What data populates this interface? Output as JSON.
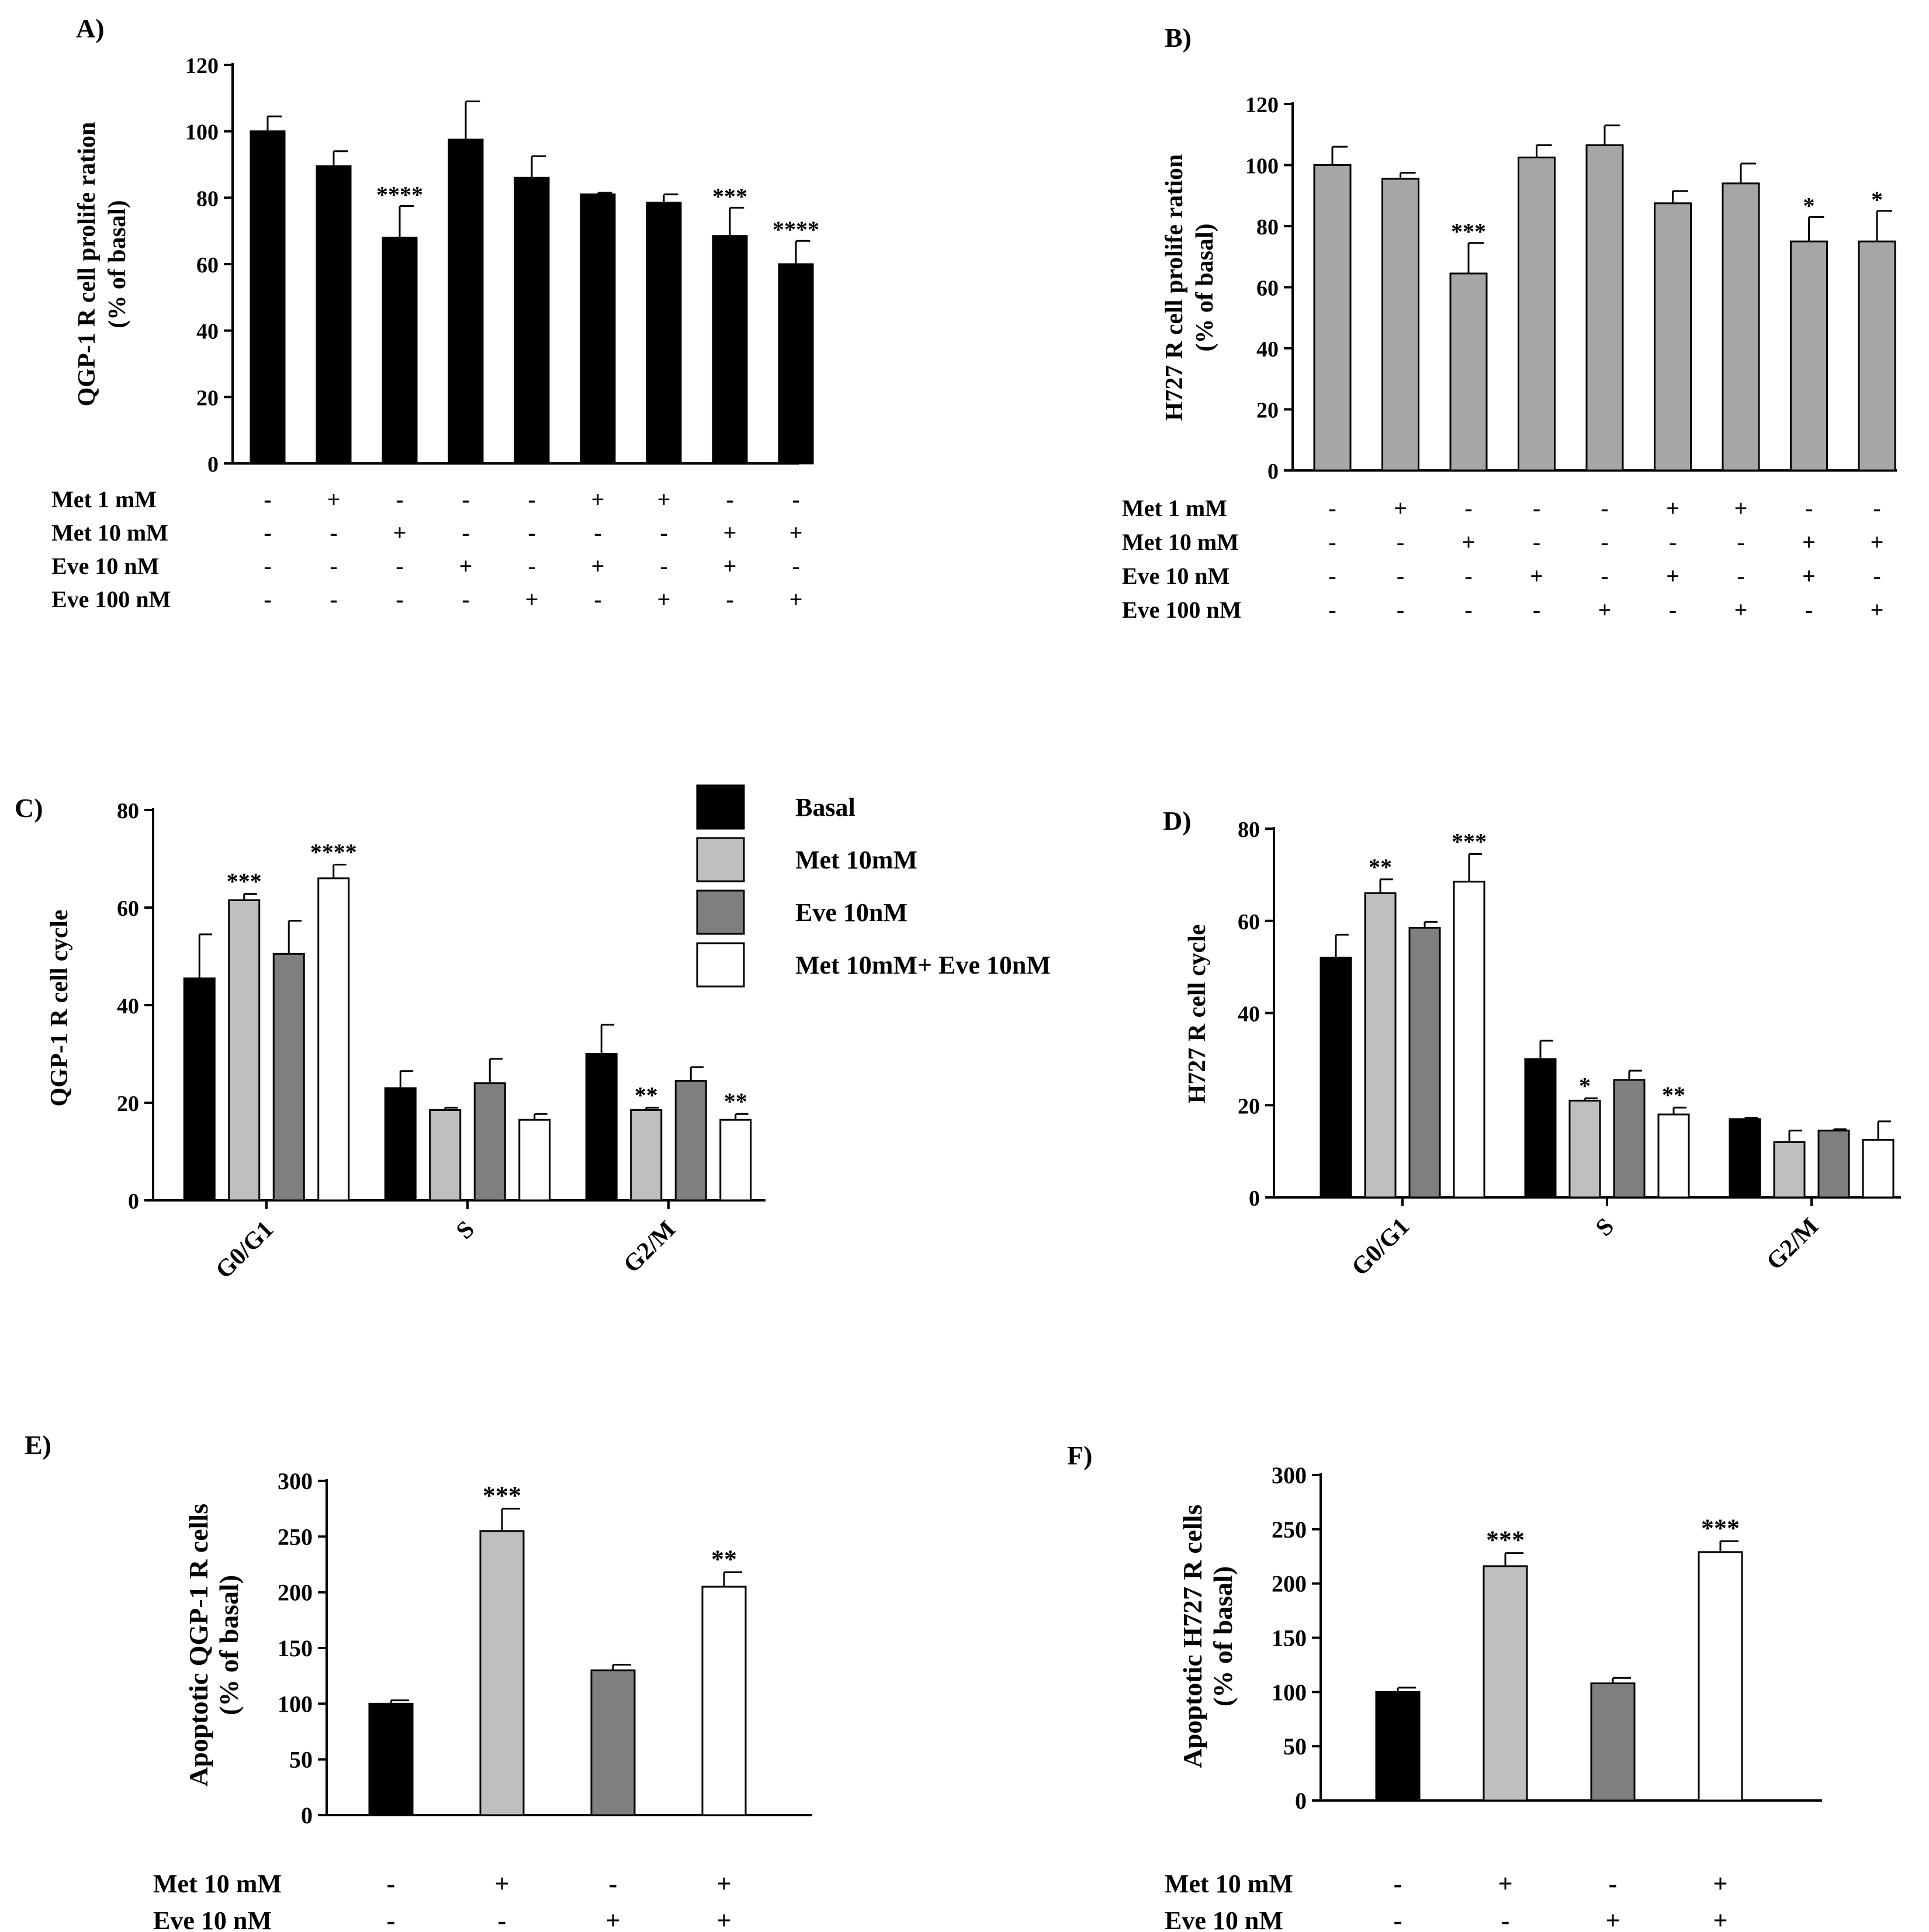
{
  "chart_data": [
    {
      "panel": "A)",
      "type": "bar",
      "ylabel": [
        "QGP-1 R cell prolife ration",
        "(% of basal)"
      ],
      "ylim": [
        0,
        120
      ],
      "yticks": [
        0,
        20,
        40,
        60,
        80,
        100,
        120
      ],
      "bar_color": "#000000",
      "values": [
        100,
        89.5,
        68,
        97.5,
        86,
        81,
        78.5,
        68.5,
        60
      ],
      "errors": [
        4.5,
        4.5,
        9.5,
        11.5,
        6.5,
        0.5,
        2.5,
        8.5,
        7
      ],
      "sig": [
        "",
        "",
        "****",
        "",
        "",
        "",
        "",
        "***",
        "****"
      ],
      "treatment_rows": [
        {
          "label": "Met 1 mM",
          "marks": [
            "-",
            "+",
            "-",
            "-",
            "-",
            "+",
            "+",
            "-",
            "-"
          ]
        },
        {
          "label": "Met 10 mM",
          "marks": [
            "-",
            "-",
            "+",
            "-",
            "-",
            "-",
            "-",
            "+",
            "+"
          ]
        },
        {
          "label": "Eve 10 nM",
          "marks": [
            "-",
            "-",
            "-",
            "+",
            "-",
            "+",
            "-",
            "+",
            "-"
          ]
        },
        {
          "label": "Eve 100 nM",
          "marks": [
            "-",
            "-",
            "-",
            "-",
            "+",
            "-",
            "+",
            "-",
            "+"
          ]
        }
      ]
    },
    {
      "panel": "B)",
      "type": "bar",
      "ylabel": [
        "H727  R cell prolife ration",
        "(% of basal)"
      ],
      "ylim": [
        0,
        120
      ],
      "yticks": [
        0,
        20,
        40,
        60,
        80,
        100,
        120
      ],
      "bar_color": "#a6a6a6",
      "values": [
        100,
        95.5,
        64.5,
        102.5,
        106.5,
        87.5,
        94,
        75,
        75
      ],
      "errors": [
        6,
        2,
        10,
        4,
        6.5,
        4,
        6.5,
        8,
        10
      ],
      "sig": [
        "",
        "",
        "***",
        "",
        "",
        "",
        "",
        "*",
        "*"
      ],
      "treatment_rows": [
        {
          "label": "Met 1 mM",
          "marks": [
            "-",
            "+",
            "-",
            "-",
            "-",
            "+",
            "+",
            "-",
            "-"
          ]
        },
        {
          "label": "Met 10 mM",
          "marks": [
            "-",
            "-",
            "+",
            "-",
            "-",
            "-",
            "-",
            "+",
            "+"
          ]
        },
        {
          "label": "Eve 10 nM",
          "marks": [
            "-",
            "-",
            "-",
            "+",
            "-",
            "+",
            "-",
            "+",
            "-"
          ]
        },
        {
          "label": "Eve 100 nM",
          "marks": [
            "-",
            "-",
            "-",
            "-",
            "+",
            "-",
            "+",
            "-",
            "+"
          ]
        }
      ]
    },
    {
      "panel": "C)",
      "type": "bar",
      "ylabel": "QGP-1  R  cell cycle",
      "ylim": [
        0,
        80
      ],
      "yticks": [
        0,
        20,
        40,
        60,
        80
      ],
      "categories": [
        "G0/G1",
        "S",
        "G2/M"
      ],
      "series": [
        {
          "name": "Basal",
          "color": "#000000",
          "values": [
            45.5,
            23,
            30
          ],
          "errors": [
            9,
            3.5,
            6
          ],
          "sig": [
            "",
            "",
            ""
          ]
        },
        {
          "name": "Met 10mM",
          "color": "#bfbfbf",
          "values": [
            61.5,
            18.5,
            18.5
          ],
          "errors": [
            1.3,
            0.5,
            0.5
          ],
          "sig": [
            "***",
            "",
            "**"
          ]
        },
        {
          "name": "Eve 10nM",
          "color": "#7f7f7f",
          "values": [
            50.5,
            24,
            24.5
          ],
          "errors": [
            6.8,
            5,
            2.8
          ],
          "sig": [
            "",
            "",
            ""
          ]
        },
        {
          "name": "Met 10mM+ Eve 10nM",
          "color": "#ffffff",
          "values": [
            66,
            16.5,
            16.5
          ],
          "errors": [
            2.8,
            1.2,
            1.2
          ],
          "sig": [
            "****",
            "",
            "**"
          ]
        }
      ],
      "legend": {
        "position": "top-right"
      }
    },
    {
      "panel": "D)",
      "type": "bar",
      "ylabel": "H727  R  cell cycle",
      "ylim": [
        0,
        80
      ],
      "yticks": [
        0,
        20,
        40,
        60,
        80
      ],
      "categories": [
        "G0/G1",
        "S",
        "G2/M"
      ],
      "series": [
        {
          "name": "Basal",
          "color": "#000000",
          "values": [
            52,
            30,
            17
          ],
          "errors": [
            5,
            4,
            0.3
          ],
          "sig": [
            "",
            "",
            ""
          ]
        },
        {
          "name": "Met 10mM",
          "color": "#bfbfbf",
          "values": [
            66,
            21,
            12
          ],
          "errors": [
            3,
            0.5,
            2.5
          ],
          "sig": [
            "**",
            "*",
            ""
          ]
        },
        {
          "name": "Eve 10nM",
          "color": "#7f7f7f",
          "values": [
            58.5,
            25.5,
            14.5
          ],
          "errors": [
            1.3,
            2,
            0.3
          ],
          "sig": [
            "",
            "",
            ""
          ]
        },
        {
          "name": "Met 10mM+ Eve 10nM",
          "color": "#ffffff",
          "values": [
            68.5,
            18,
            12.5
          ],
          "errors": [
            6,
            1.5,
            4
          ],
          "sig": [
            "***",
            "**",
            ""
          ]
        }
      ]
    },
    {
      "panel": "E)",
      "type": "bar",
      "ylabel": [
        "Apoptotic QGP-1 R cells",
        "(% of basal)"
      ],
      "ylim": [
        0,
        300
      ],
      "yticks": [
        0,
        50,
        100,
        150,
        200,
        250,
        300
      ],
      "colors": [
        "#000000",
        "#bfbfbf",
        "#7f7f7f",
        "#ffffff"
      ],
      "values": [
        100,
        255,
        130,
        205
      ],
      "errors": [
        3,
        20,
        5,
        13
      ],
      "sig": [
        "",
        "***",
        "",
        "**"
      ],
      "treatment_rows": [
        {
          "label": "Met 10 mM",
          "marks": [
            "-",
            "+",
            "-",
            "+"
          ]
        },
        {
          "label": "Eve 10 nM",
          "marks": [
            "-",
            "-",
            "+",
            "+"
          ]
        }
      ]
    },
    {
      "panel": "F)",
      "type": "bar",
      "ylabel": [
        "Apoptotic H727 R cells",
        "(% of basal)"
      ],
      "ylim": [
        0,
        300
      ],
      "yticks": [
        0,
        50,
        100,
        150,
        200,
        250,
        300
      ],
      "colors": [
        "#000000",
        "#bfbfbf",
        "#7f7f7f",
        "#ffffff"
      ],
      "values": [
        100,
        216,
        108,
        229
      ],
      "errors": [
        4,
        12,
        5,
        10
      ],
      "sig": [
        "",
        "***",
        "",
        "***"
      ],
      "treatment_rows": [
        {
          "label": "Met 10 mM",
          "marks": [
            "-",
            "+",
            "-",
            "+"
          ]
        },
        {
          "label": "Eve 10 nM",
          "marks": [
            "-",
            "-",
            "+",
            "+"
          ]
        }
      ]
    }
  ]
}
